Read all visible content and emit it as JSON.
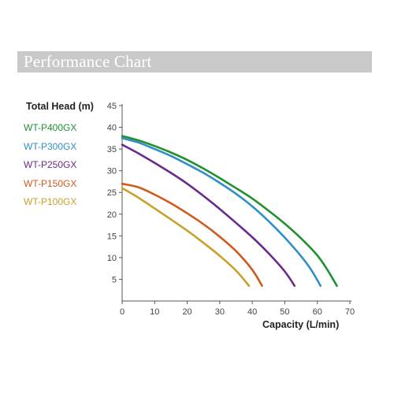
{
  "header": {
    "title": "Performance Chart"
  },
  "chart_data": {
    "type": "line",
    "xlabel": "Capacity (L/min)",
    "ylabel": "Total Head (m)",
    "xlim": [
      0,
      70
    ],
    "ylim": [
      0,
      45
    ],
    "x_ticks": [
      0,
      10,
      20,
      30,
      40,
      50,
      60,
      70
    ],
    "y_ticks": [
      5,
      10,
      15,
      20,
      25,
      30,
      35,
      40,
      45
    ],
    "grid": false,
    "legend_position": "left",
    "series": [
      {
        "name": "WT-P400GX",
        "color": "#22902f",
        "x": [
          0,
          5,
          10,
          15,
          20,
          25,
          30,
          35,
          40,
          45,
          50,
          55,
          60,
          63,
          66
        ],
        "y": [
          38,
          37,
          35.7,
          34.2,
          32.5,
          30.5,
          28.3,
          26,
          23.6,
          20.8,
          17.8,
          14.4,
          10.5,
          7.3,
          3.5
        ]
      },
      {
        "name": "WT-P300GX",
        "color": "#2f8fc8",
        "x": [
          0,
          5,
          10,
          15,
          20,
          25,
          30,
          35,
          40,
          45,
          50,
          55,
          58,
          61
        ],
        "y": [
          37.5,
          36.5,
          35,
          33.4,
          31.5,
          29.5,
          27.2,
          24.7,
          21.8,
          18.4,
          14.6,
          10.3,
          7.3,
          3.5
        ]
      },
      {
        "name": "WT-P250GX",
        "color": "#6a2a8c",
        "x": [
          0,
          5,
          10,
          15,
          20,
          25,
          30,
          35,
          40,
          45,
          50,
          53
        ],
        "y": [
          36,
          34,
          31.8,
          29.5,
          27,
          24.2,
          21.2,
          18,
          14.7,
          11,
          6.8,
          3.5
        ]
      },
      {
        "name": "WT-P150GX",
        "color": "#cf5a1e",
        "x": [
          0,
          5,
          10,
          15,
          20,
          25,
          30,
          35,
          40,
          43
        ],
        "y": [
          27,
          26.2,
          24.5,
          22.5,
          20.2,
          17.7,
          14.8,
          11.5,
          7.2,
          3.5
        ]
      },
      {
        "name": "WT-P100GX",
        "color": "#c8a02a",
        "x": [
          0,
          5,
          10,
          15,
          20,
          25,
          30,
          35,
          39
        ],
        "y": [
          26,
          23.8,
          21.3,
          18.8,
          16.2,
          13.4,
          10.4,
          7,
          3.5
        ]
      }
    ]
  }
}
